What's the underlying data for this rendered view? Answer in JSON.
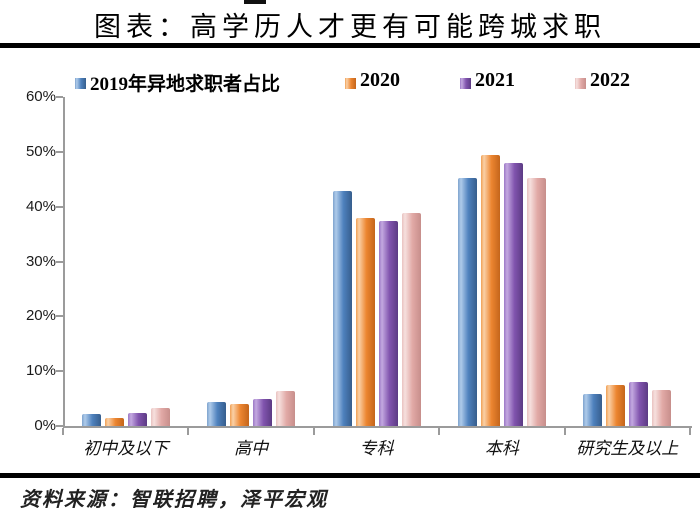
{
  "title": "图表：高学历人才更有可能跨城求职",
  "source": "资料来源：智联招聘，泽平宏观",
  "chart_data": {
    "type": "bar",
    "title": "图表：高学历人才更有可能跨城求职",
    "categories": [
      "初中及以下",
      "高中",
      "专科",
      "本科",
      "研究生及以上"
    ],
    "series": [
      {
        "name": "2019年异地求职者占比",
        "color": "#4E81BD",
        "values": [
          2.2,
          4.4,
          42.9,
          45.2,
          5.8
        ]
      },
      {
        "name": "2020",
        "color": "#EC8530",
        "values": [
          1.5,
          4.0,
          38.0,
          49.4,
          7.5
        ]
      },
      {
        "name": "2021",
        "color": "#8154AE",
        "values": [
          2.4,
          4.9,
          37.4,
          48.0,
          8.0
        ]
      },
      {
        "name": "2022",
        "color": "#E1A9A6",
        "values": [
          3.2,
          6.4,
          38.9,
          45.2,
          6.5
        ]
      }
    ],
    "ytick_labels": [
      "60%",
      "50%",
      "40%",
      "30%",
      "20%",
      "10%",
      "0%"
    ],
    "ylim": [
      0,
      60
    ],
    "grid": false,
    "legend_position": "top",
    "axis_color": "#9b9b9b"
  }
}
